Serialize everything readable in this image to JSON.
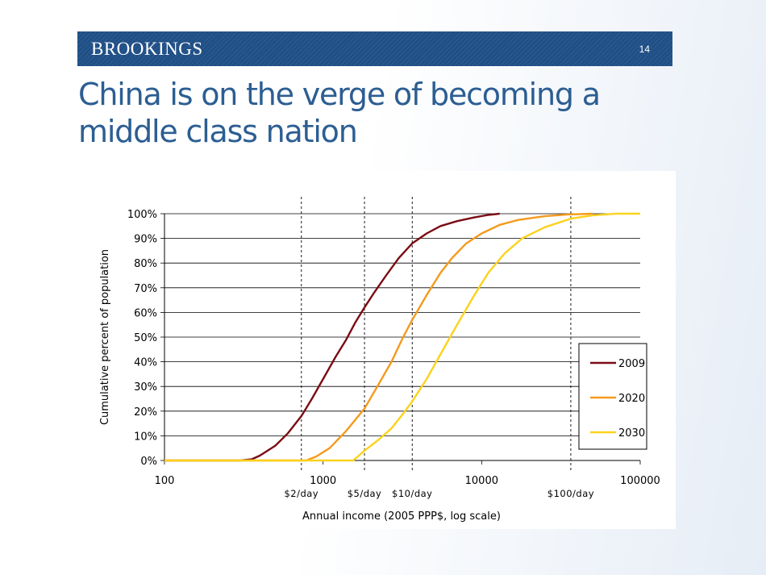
{
  "header": {
    "brand": "BROOKINGS",
    "page_number": "14"
  },
  "slide": {
    "title": "China is on the verge of becoming a middle class nation"
  },
  "colors": {
    "header_bar": "#1f4f86",
    "title": "#2c5e92",
    "s2009": "#7a0c14",
    "s2020": "#f49a1c",
    "s2030": "#fcd21c"
  },
  "chart_data": {
    "type": "line",
    "title": "",
    "xlabel": "Annual income (2005 PPP$, log scale)",
    "ylabel": "Cumulative percent of population",
    "xscale": "log",
    "xlim": [
      100,
      100000
    ],
    "ylim": [
      0,
      100
    ],
    "x_ticks": [
      100,
      1000,
      10000,
      100000
    ],
    "x_tick_labels": [
      "100",
      "1000",
      "10000",
      "100000"
    ],
    "y_ticks": [
      0,
      10,
      20,
      30,
      40,
      50,
      60,
      70,
      80,
      90,
      100
    ],
    "y_tick_labels": [
      "0%",
      "10%",
      "20%",
      "30%",
      "40%",
      "50%",
      "60%",
      "70%",
      "80%",
      "90%",
      "100%"
    ],
    "grid": "horizontal",
    "legend_position": "right",
    "reference_lines": [
      {
        "x": 730,
        "label": "$2/day"
      },
      {
        "x": 1825,
        "label": "$5/day"
      },
      {
        "x": 3650,
        "label": "$10/day"
      },
      {
        "x": 36500,
        "label": "$100/day"
      }
    ],
    "series": [
      {
        "name": "2009",
        "color": "#7a0c14",
        "x": [
          100,
          300,
          355,
          400,
          500,
          600,
          730,
          850,
          1000,
          1200,
          1400,
          1600,
          1825,
          2100,
          2500,
          3000,
          3650,
          4500,
          5500,
          7000,
          9000,
          11000,
          13000
        ],
        "y": [
          0,
          0,
          0.5,
          2,
          6,
          11,
          18,
          25,
          33,
          42,
          49,
          56,
          62,
          68,
          75,
          82,
          88,
          92,
          95,
          97,
          98.5,
          99.5,
          100
        ]
      },
      {
        "name": "2020",
        "color": "#f49a1c",
        "x": [
          100,
          700,
          780,
          900,
          1100,
          1400,
          1825,
          2200,
          2700,
          3200,
          3650,
          4500,
          5500,
          6500,
          8000,
          10000,
          13000,
          17000,
          25000,
          35000,
          50000
        ],
        "y": [
          0,
          0,
          0,
          1.5,
          5,
          12,
          21,
          30,
          40,
          50,
          57,
          67,
          76,
          82,
          88,
          92,
          95.5,
          97.5,
          99,
          99.7,
          100
        ]
      },
      {
        "name": "2030",
        "color": "#fcd21c",
        "x": [
          100,
          1400,
          1550,
          1825,
          2200,
          2700,
          3200,
          3650,
          4500,
          5500,
          7000,
          9000,
          11000,
          14000,
          18000,
          25000,
          36500,
          50000,
          70000,
          100000
        ],
        "y": [
          0,
          0,
          0,
          4,
          8,
          13,
          19,
          24,
          33,
          43,
          55,
          67,
          76,
          84,
          90,
          94.5,
          98,
          99.3,
          100,
          100
        ]
      }
    ]
  }
}
